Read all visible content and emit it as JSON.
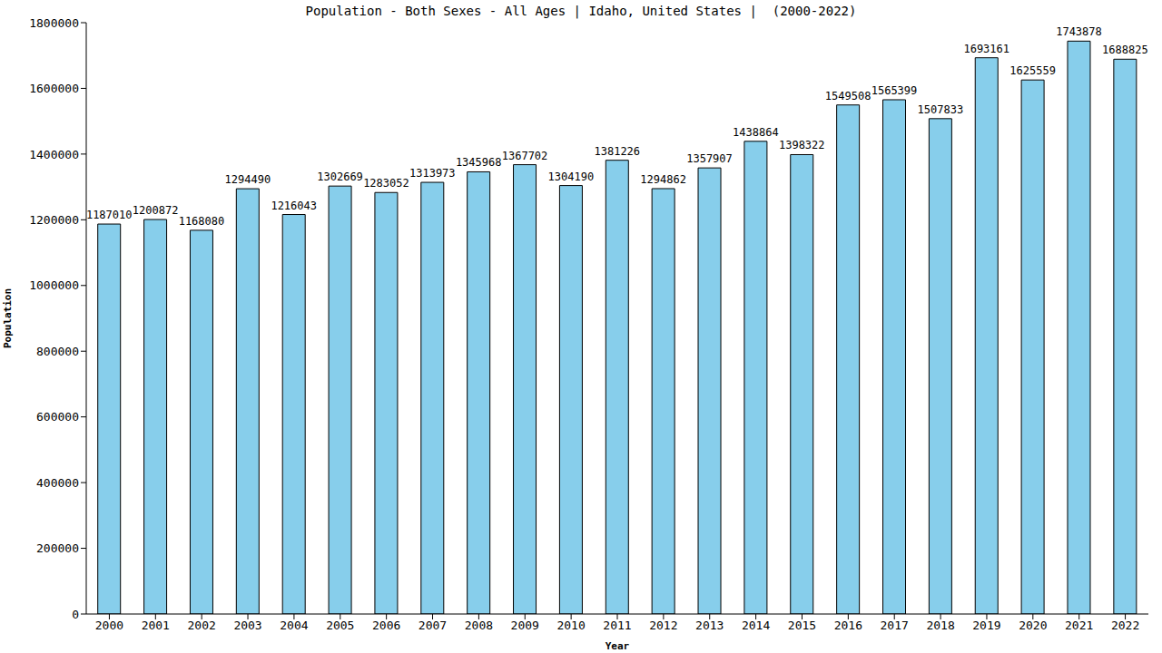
{
  "chart_data": {
    "type": "bar",
    "title": "Population - Both Sexes - All Ages | Idaho, United States |  (2000-2022)",
    "x_label": "Year",
    "y_label": "Population",
    "categories": [
      "2000",
      "2001",
      "2002",
      "2003",
      "2004",
      "2005",
      "2006",
      "2007",
      "2008",
      "2009",
      "2010",
      "2011",
      "2012",
      "2013",
      "2014",
      "2015",
      "2016",
      "2017",
      "2018",
      "2019",
      "2020",
      "2021",
      "2022"
    ],
    "values": [
      1187010,
      1200872,
      1168080,
      1294490,
      1216043,
      1302669,
      1283052,
      1313973,
      1345968,
      1367702,
      1304190,
      1381226,
      1294862,
      1357907,
      1438864,
      1398322,
      1549508,
      1565399,
      1507833,
      1693161,
      1625559,
      1743878,
      1688825
    ],
    "color": "#87ceeb",
    "ylim": [
      0,
      1800000
    ],
    "yticks": [
      0,
      200000,
      400000,
      600000,
      800000,
      1000000,
      1200000,
      1400000,
      1600000,
      1800000
    ],
    "grid": false,
    "data_labels": true
  }
}
